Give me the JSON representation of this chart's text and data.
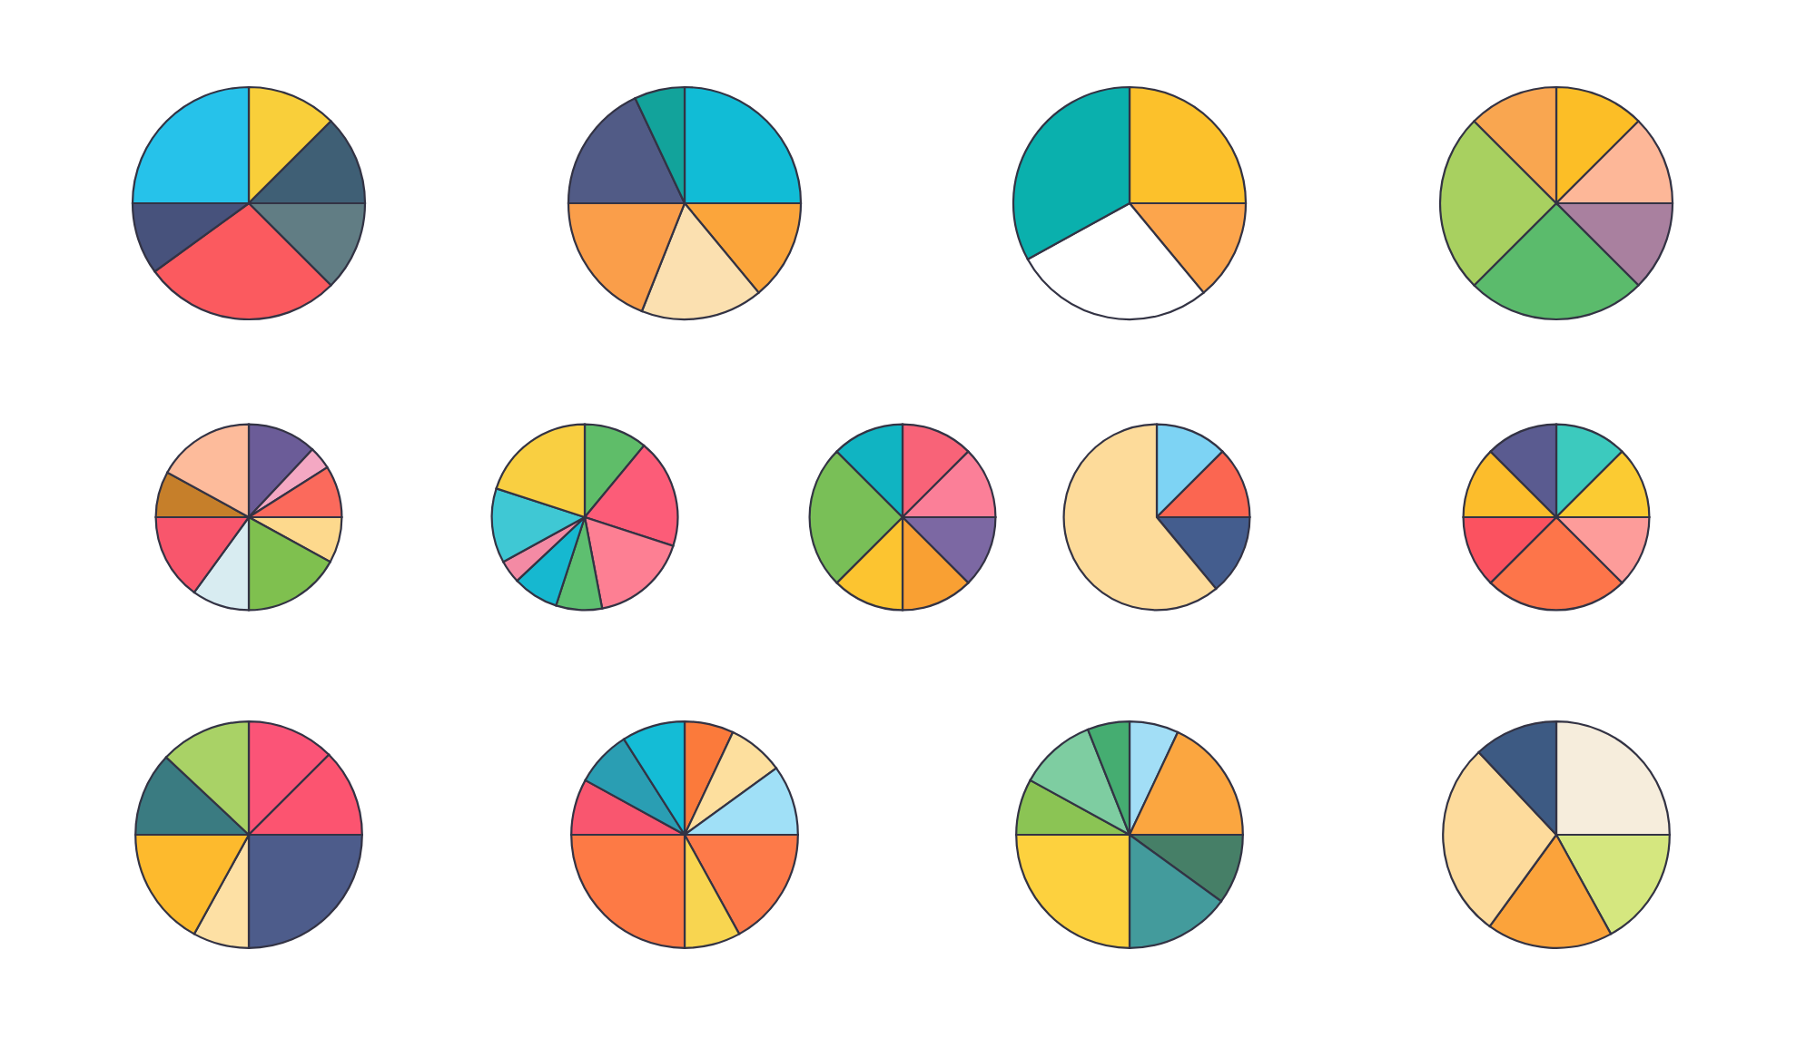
{
  "chart_data": [
    {
      "type": "pie",
      "categories": [
        null,
        null,
        null,
        null,
        null,
        null
      ],
      "values": [
        12.5,
        12.5,
        12.5,
        27.5,
        10,
        25
      ],
      "colors": [
        "#f9cf3a",
        "#3f5f75",
        "#617d84",
        "#fb5a5f",
        "#47527c",
        "#26c2ea"
      ]
    },
    {
      "type": "pie",
      "categories": [
        null,
        null,
        null,
        null,
        null,
        null
      ],
      "values": [
        25,
        14,
        17,
        19,
        18,
        7
      ],
      "colors": [
        "#11bcd6",
        "#fba53b",
        "#fbe0b0",
        "#fa9e4a",
        "#515b86",
        "#12a39b"
      ]
    },
    {
      "type": "pie",
      "categories": [
        null,
        null,
        null,
        null
      ],
      "values": [
        25,
        14,
        28,
        33
      ],
      "colors": [
        "#fcc12b",
        "#fca54c",
        "#ffffff",
        "#0ab0ad"
      ]
    },
    {
      "type": "pie",
      "categories": [
        null,
        null,
        null,
        null,
        null,
        null
      ],
      "values": [
        12.5,
        12.5,
        12.5,
        25,
        25,
        12.5
      ],
      "colors": [
        "#fcbe26",
        "#fdb798",
        "#a9809f",
        "#5bbb6c",
        "#a8d060",
        "#f9a650"
      ]
    },
    {
      "type": "pie",
      "categories": [
        null,
        null,
        null,
        null,
        null,
        null,
        null,
        null,
        null
      ],
      "values": [
        12,
        4,
        9,
        8,
        17,
        10,
        15,
        8,
        17
      ],
      "colors": [
        "#6b5c98",
        "#f4a8c3",
        "#fb6a5c",
        "#fdd98d",
        "#7fc04f",
        "#d8ecf1",
        "#f8566c",
        "#c67f2a",
        "#fdbb9b"
      ]
    },
    {
      "type": "pie",
      "categories": [
        null,
        null,
        null,
        null,
        null,
        null,
        null,
        null
      ],
      "values": [
        11,
        19,
        17,
        8,
        8,
        4,
        13,
        20
      ],
      "colors": [
        "#5fbd69",
        "#fc5c78",
        "#fd7f93",
        "#5ebf70",
        "#16b8d0",
        "#f48aa4",
        "#3fc8d4",
        "#f9cf41"
      ]
    },
    {
      "type": "pie",
      "categories": [
        null,
        null,
        null,
        null,
        null,
        null,
        null
      ],
      "values": [
        12.5,
        12.5,
        12.5,
        12.5,
        12.5,
        25,
        12.5
      ],
      "colors": [
        "#f86378",
        "#fb7f98",
        "#7c68a3",
        "#f9a033",
        "#fcc430",
        "#79bf57",
        "#10b4c2"
      ]
    },
    {
      "type": "pie",
      "categories": [
        null,
        null,
        null,
        null
      ],
      "values": [
        12.5,
        12.5,
        14,
        61
      ],
      "colors": [
        "#7dd3f4",
        "#fb6651",
        "#445d8e",
        "#fddb9a"
      ]
    },
    {
      "type": "pie",
      "categories": [
        null,
        null,
        null,
        null,
        null,
        null,
        null
      ],
      "values": [
        12.5,
        12.5,
        12.5,
        25,
        12.5,
        12.5,
        12.5
      ],
      "colors": [
        "#3ccabe",
        "#fbcb32",
        "#fd9c9a",
        "#fd754a",
        "#fb5260",
        "#fcbd2c",
        "#5a5b90"
      ]
    },
    {
      "type": "pie",
      "categories": [
        null,
        null,
        null,
        null,
        null,
        null,
        null
      ],
      "values": [
        12.5,
        12.5,
        25,
        8,
        17,
        12,
        13
      ],
      "colors": [
        "#fb5477",
        "#fc5470",
        "#4d5c8b",
        "#fde0a4",
        "#fdba2d",
        "#3a7b81",
        "#a9d266"
      ]
    },
    {
      "type": "pie",
      "categories": [
        null,
        null,
        null,
        null,
        null,
        null,
        null,
        null,
        null
      ],
      "values": [
        7,
        8,
        10,
        17,
        8,
        25,
        8,
        8,
        9
      ],
      "colors": [
        "#fb7a3b",
        "#fddf9e",
        "#a0e0f7",
        "#fd7a49",
        "#f8d550",
        "#fd7a45",
        "#f9566f",
        "#2a9eb3",
        "#14bcd6"
      ]
    },
    {
      "type": "pie",
      "categories": [
        null,
        null,
        null,
        null,
        null,
        null,
        null,
        null
      ],
      "values": [
        7,
        18,
        10,
        15,
        25,
        8,
        11,
        6
      ],
      "colors": [
        "#a2def6",
        "#fba640",
        "#467f67",
        "#439b9c",
        "#fdd13e",
        "#8bc454",
        "#7ecda1",
        "#45ad71"
      ]
    },
    {
      "type": "pie",
      "categories": [
        null,
        null,
        null,
        null,
        null
      ],
      "values": [
        25,
        17,
        18,
        28,
        12
      ],
      "colors": [
        "#f6eddc",
        "#d5e77f",
        "#fba33b",
        "#fddb9c",
        "#3d5a83"
      ]
    }
  ]
}
